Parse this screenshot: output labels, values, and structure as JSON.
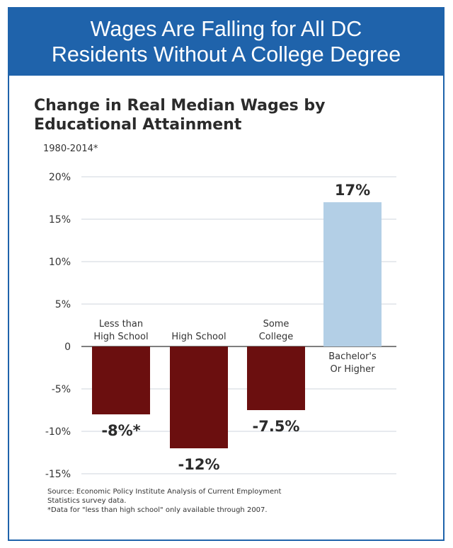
{
  "banner": {
    "line1": "Wages Are Falling for All DC",
    "line2": "Residents Without A College Degree"
  },
  "colors": {
    "banner_bg": "#1f63ab",
    "negative_bar": "#6b0f0f",
    "positive_bar": "#b3cfe6",
    "gridline": "#cfd6dc"
  },
  "chart_data": {
    "type": "bar",
    "title_lines": [
      "Change in Real Median Wages by",
      "Educational Attainment"
    ],
    "subtitle": "1980-2014*",
    "xlabel": "",
    "ylabel": "",
    "ylim": [
      -15,
      20
    ],
    "yticks": [
      {
        "value": 20,
        "label": "20%"
      },
      {
        "value": 15,
        "label": "15%"
      },
      {
        "value": 10,
        "label": "10%"
      },
      {
        "value": 5,
        "label": "5%"
      },
      {
        "value": 0,
        "label": "0"
      },
      {
        "value": -5,
        "label": "-5%"
      },
      {
        "value": -10,
        "label": "-10%"
      },
      {
        "value": -15,
        "label": "-15%"
      }
    ],
    "grid": true,
    "categories": [
      {
        "label_lines": [
          "Less than",
          "High School"
        ],
        "value": -8,
        "value_label": "-8%*"
      },
      {
        "label_lines": [
          "High School"
        ],
        "value": -12,
        "value_label": "-12%"
      },
      {
        "label_lines": [
          "Some",
          "College"
        ],
        "value": -7.5,
        "value_label": "-7.5%"
      },
      {
        "label_lines": [
          "Bachelor's",
          "Or Higher"
        ],
        "value": 17,
        "value_label": "17%"
      }
    ]
  },
  "source_lines": [
    "Source: Economic Policy Institute Analysis of Current Employment",
    "Statistics survey data.",
    "*Data for \"less than high school\" only available through 2007."
  ]
}
